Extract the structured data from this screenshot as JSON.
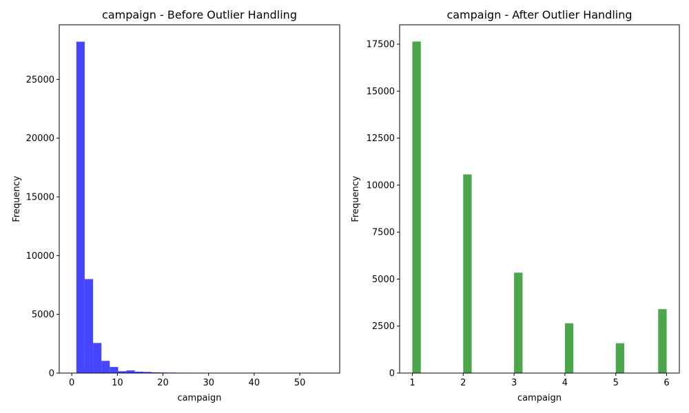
{
  "chart_data": [
    {
      "type": "bar",
      "title": "campaign - Before Outlier Handling",
      "xlabel": "campaign",
      "ylabel": "Frequency",
      "color": "#4646ff",
      "xlim": [
        -2.75,
        58.75
      ],
      "ylim": [
        0,
        29650
      ],
      "xticks": [
        0,
        10,
        20,
        30,
        40,
        50
      ],
      "yticks": [
        0,
        5000,
        10000,
        15000,
        20000,
        25000
      ],
      "bins": [
        {
          "x0": 1.0,
          "x1": 2.83,
          "value": 28210
        },
        {
          "x0": 2.83,
          "x1": 4.67,
          "value": 8000
        },
        {
          "x0": 4.67,
          "x1": 6.5,
          "value": 2560
        },
        {
          "x0": 6.5,
          "x1": 8.33,
          "value": 1040
        },
        {
          "x0": 8.33,
          "x1": 10.17,
          "value": 520
        },
        {
          "x0": 10.17,
          "x1": 12.0,
          "value": 160
        },
        {
          "x0": 12.0,
          "x1": 13.83,
          "value": 230
        },
        {
          "x0": 13.83,
          "x1": 15.67,
          "value": 120
        },
        {
          "x0": 15.67,
          "x1": 17.5,
          "value": 100
        },
        {
          "x0": 17.5,
          "x1": 19.33,
          "value": 60
        },
        {
          "x0": 19.33,
          "x1": 21.17,
          "value": 50
        },
        {
          "x0": 21.17,
          "x1": 23.0,
          "value": 40
        },
        {
          "x0": 23.0,
          "x1": 24.83,
          "value": 30
        },
        {
          "x0": 24.83,
          "x1": 26.67,
          "value": 25
        },
        {
          "x0": 26.67,
          "x1": 28.5,
          "value": 20
        },
        {
          "x0": 28.5,
          "x1": 30.33,
          "value": 15
        },
        {
          "x0": 30.33,
          "x1": 32.17,
          "value": 8
        },
        {
          "x0": 32.17,
          "x1": 34.0,
          "value": 5
        }
      ]
    },
    {
      "type": "bar",
      "title": "campaign - After Outlier Handling",
      "xlabel": "campaign",
      "ylabel": "Frequency",
      "color": "#4ca64c",
      "xlim": [
        0.75,
        6.25
      ],
      "ylim": [
        0,
        18530
      ],
      "xticks": [
        1,
        2,
        3,
        4,
        5,
        6
      ],
      "yticks": [
        0,
        2500,
        5000,
        7500,
        10000,
        12500,
        15000,
        17500
      ],
      "bins": [
        {
          "x0": 1.0,
          "x1": 1.1667,
          "value": 17640
        },
        {
          "x0": 2.0,
          "x1": 2.1667,
          "value": 10570
        },
        {
          "x0": 3.0,
          "x1": 3.1667,
          "value": 5340
        },
        {
          "x0": 4.0,
          "x1": 4.1667,
          "value": 2650
        },
        {
          "x0": 5.0,
          "x1": 5.1667,
          "value": 1590
        },
        {
          "x0": 5.8333,
          "x1": 6.0,
          "value": 3400
        }
      ]
    }
  ]
}
